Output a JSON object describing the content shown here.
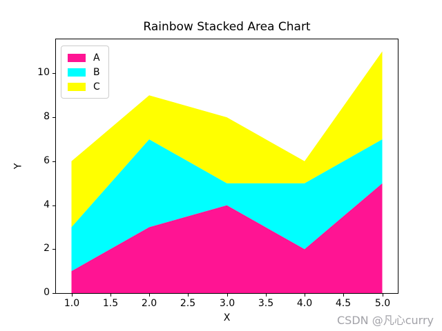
{
  "figure": {
    "watermark": "CSDN @凡心curry"
  },
  "chart_data": {
    "type": "area",
    "stacked": true,
    "title": "Rainbow Stacked Area Chart",
    "xlabel": "X",
    "ylabel": "Y",
    "x": [
      1,
      2,
      3,
      4,
      5
    ],
    "series": [
      {
        "name": "A",
        "color": "#FF1493",
        "values": [
          1,
          3,
          4,
          2,
          5
        ]
      },
      {
        "name": "B",
        "color": "#00FFFF",
        "values": [
          2,
          4,
          1,
          3,
          2
        ]
      },
      {
        "name": "C",
        "color": "#FFFF00",
        "values": [
          3,
          2,
          3,
          1,
          4
        ]
      }
    ],
    "stack_tops": {
      "A": [
        1,
        3,
        4,
        2,
        5
      ],
      "B": [
        3,
        7,
        5,
        5,
        7
      ],
      "C": [
        6,
        9,
        8,
        6,
        11
      ]
    },
    "x_ticks": {
      "values": [
        1,
        1.5,
        2,
        2.5,
        3,
        3.5,
        4,
        4.5,
        5
      ],
      "labels": [
        "1.0",
        "1.5",
        "2.0",
        "2.5",
        "3.0",
        "3.5",
        "4.0",
        "4.5",
        "5.0"
      ]
    },
    "y_ticks": {
      "values": [
        0,
        2,
        4,
        6,
        8,
        10
      ],
      "labels": [
        "0",
        "2",
        "4",
        "6",
        "8",
        "10"
      ]
    },
    "xlim": [
      0.8,
      5.2
    ],
    "ylim": [
      0,
      11.55
    ],
    "grid": false,
    "legend_position": "upper left",
    "frame_color": "#000000",
    "background_color": "#ffffff"
  }
}
